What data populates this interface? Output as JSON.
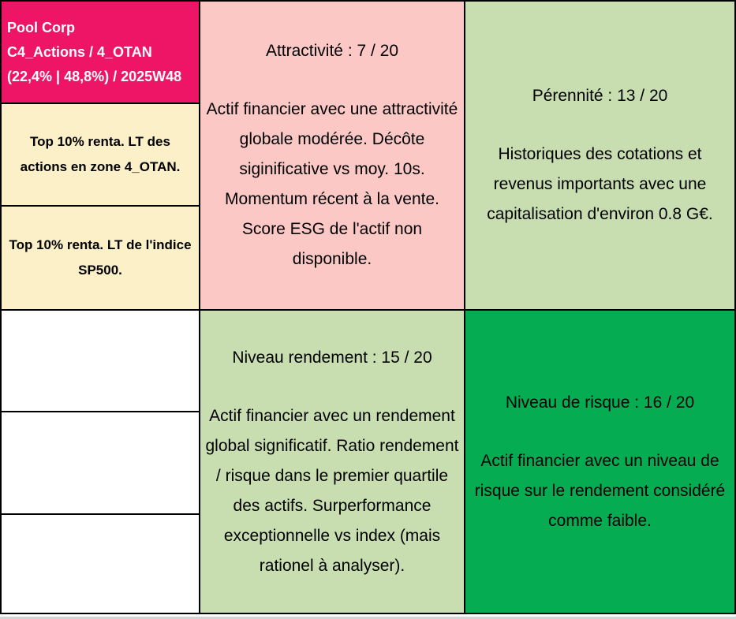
{
  "report": {
    "header": {
      "title": "Pool Corp",
      "category": "C4_Actions / 4_OTAN",
      "stats": "(22,4% | 48,8%) / 2025W48"
    },
    "highlights": [
      {
        "text": "Top 10% renta. LT des actions en zone 4_OTAN."
      },
      {
        "text": "Top 10% renta. LT de l'indice SP500."
      }
    ],
    "scores": {
      "attractivite": {
        "title": "Attractivité : 7 / 20",
        "description": "Actif financier avec une attractivité globale modérée. Décôte siginificative vs moy. 10s. Momentum récent à la vente. Score ESG de l'actif non disponible."
      },
      "perennite": {
        "title": "Pérennité : 13 / 20",
        "description": "Historiques des cotations et revenus importants avec une capitalisation d'environ 0.8 G€."
      },
      "rendement": {
        "title": "Niveau rendement : 15 / 20",
        "description": "Actif financier avec un rendement global significatif. Ratio rendement / risque dans le premier quartile des actifs. Surperformance exceptionnelle vs index (mais rationel à analyser)."
      },
      "risque": {
        "title": "Niveau de risque : 16 / 20",
        "description": "Actif financier avec un niveau de risque sur le rendement considéré comme faible."
      }
    },
    "colors": {
      "header_bg": "#EE1566",
      "note_bg": "#FBF0C8",
      "attractivite_bg": "#FBC8C6",
      "perennite_bg": "#C8DDB0",
      "rendement_bg": "#C8DDB0",
      "risque_bg": "#06AC52",
      "border": "#000000"
    }
  }
}
